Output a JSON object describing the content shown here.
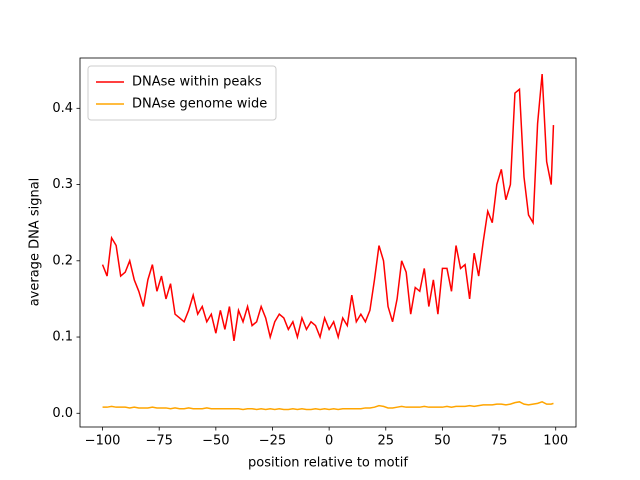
{
  "chart_data": {
    "type": "line",
    "xlabel": "position relative to motif",
    "ylabel": "average DNA signal",
    "x": [
      -100,
      -98,
      -96,
      -94,
      -92,
      -90,
      -88,
      -86,
      -84,
      -82,
      -80,
      -78,
      -76,
      -74,
      -72,
      -70,
      -68,
      -66,
      -64,
      -62,
      -60,
      -58,
      -56,
      -54,
      -52,
      -50,
      -48,
      -46,
      -44,
      -42,
      -40,
      -38,
      -36,
      -34,
      -32,
      -30,
      -28,
      -26,
      -24,
      -22,
      -20,
      -18,
      -16,
      -14,
      -12,
      -10,
      -8,
      -6,
      -4,
      -2,
      0,
      2,
      4,
      6,
      8,
      10,
      12,
      14,
      16,
      18,
      20,
      22,
      24,
      26,
      28,
      30,
      32,
      34,
      36,
      38,
      40,
      42,
      44,
      46,
      48,
      50,
      52,
      54,
      56,
      58,
      60,
      62,
      64,
      66,
      68,
      70,
      72,
      74,
      76,
      78,
      80,
      82,
      84,
      86,
      88,
      90,
      92,
      94,
      96,
      98,
      99
    ],
    "series": [
      {
        "name": "DNAse within peaks",
        "color": "#ff0000",
        "values": [
          0.195,
          0.18,
          0.23,
          0.22,
          0.18,
          0.185,
          0.2,
          0.175,
          0.16,
          0.14,
          0.175,
          0.195,
          0.16,
          0.18,
          0.15,
          0.17,
          0.13,
          0.125,
          0.12,
          0.135,
          0.155,
          0.13,
          0.14,
          0.12,
          0.13,
          0.105,
          0.135,
          0.11,
          0.14,
          0.095,
          0.135,
          0.12,
          0.14,
          0.115,
          0.12,
          0.14,
          0.125,
          0.1,
          0.12,
          0.13,
          0.125,
          0.11,
          0.12,
          0.1,
          0.125,
          0.11,
          0.12,
          0.115,
          0.1,
          0.125,
          0.11,
          0.12,
          0.1,
          0.125,
          0.115,
          0.155,
          0.12,
          0.13,
          0.12,
          0.135,
          0.175,
          0.22,
          0.2,
          0.14,
          0.12,
          0.15,
          0.2,
          0.185,
          0.13,
          0.165,
          0.16,
          0.19,
          0.14,
          0.175,
          0.13,
          0.19,
          0.19,
          0.16,
          0.22,
          0.19,
          0.195,
          0.15,
          0.21,
          0.18,
          0.225,
          0.265,
          0.25,
          0.3,
          0.32,
          0.28,
          0.3,
          0.42,
          0.425,
          0.31,
          0.26,
          0.25,
          0.38,
          0.445,
          0.33,
          0.3,
          0.378
        ]
      },
      {
        "name": "DNAse genome wide",
        "color": "#ffa500",
        "values": [
          0.008,
          0.008,
          0.009,
          0.008,
          0.008,
          0.008,
          0.007,
          0.008,
          0.007,
          0.007,
          0.007,
          0.008,
          0.007,
          0.007,
          0.007,
          0.006,
          0.007,
          0.006,
          0.006,
          0.007,
          0.006,
          0.006,
          0.006,
          0.007,
          0.006,
          0.006,
          0.006,
          0.006,
          0.006,
          0.006,
          0.006,
          0.005,
          0.006,
          0.006,
          0.005,
          0.006,
          0.005,
          0.006,
          0.005,
          0.006,
          0.005,
          0.005,
          0.006,
          0.005,
          0.006,
          0.005,
          0.005,
          0.006,
          0.005,
          0.006,
          0.005,
          0.006,
          0.005,
          0.006,
          0.006,
          0.006,
          0.006,
          0.006,
          0.007,
          0.007,
          0.008,
          0.01,
          0.009,
          0.007,
          0.007,
          0.008,
          0.009,
          0.008,
          0.008,
          0.008,
          0.008,
          0.009,
          0.008,
          0.008,
          0.008,
          0.008,
          0.009,
          0.008,
          0.009,
          0.009,
          0.009,
          0.01,
          0.009,
          0.01,
          0.011,
          0.011,
          0.011,
          0.012,
          0.012,
          0.011,
          0.012,
          0.014,
          0.015,
          0.012,
          0.011,
          0.012,
          0.013,
          0.015,
          0.012,
          0.012,
          0.013
        ]
      }
    ],
    "xlim": [
      -109.95,
      108.95
    ],
    "ylim": [
      -0.018,
      0.466
    ],
    "xticks": [
      {
        "value": -100,
        "label": "−100"
      },
      {
        "value": -75,
        "label": "−75"
      },
      {
        "value": -50,
        "label": "−50"
      },
      {
        "value": -25,
        "label": "−25"
      },
      0,
      25,
      50,
      75,
      100
    ],
    "yticks": [
      {
        "value": 0,
        "label": "0.0"
      },
      0.1,
      0.2,
      0.3,
      0.4
    ],
    "legend": "upper left"
  }
}
